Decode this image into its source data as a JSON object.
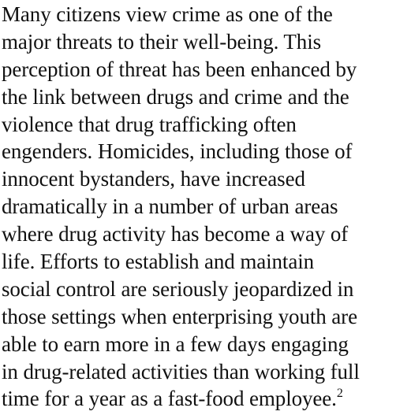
{
  "paragraph": {
    "lines": [
      "Many citizens view crime as one of the",
      "major threats to their well-being. This",
      "perception of threat has been enhanced by",
      "the link between drugs and crime and the",
      "violence that drug trafficking often",
      "engenders. Homicides, including those of",
      "innocent bystanders, have increased",
      "dramatically in a number of urban areas",
      "where drug activity has become a way of",
      "life. Efforts to establish and maintain",
      "social control are seriously jeopardized in",
      "those settings when enterprising youth are",
      "able to earn more in a few days engaging",
      "in drug-related activities than working full",
      "time for a year as a fast-food employee."
    ],
    "footnote": "2"
  }
}
